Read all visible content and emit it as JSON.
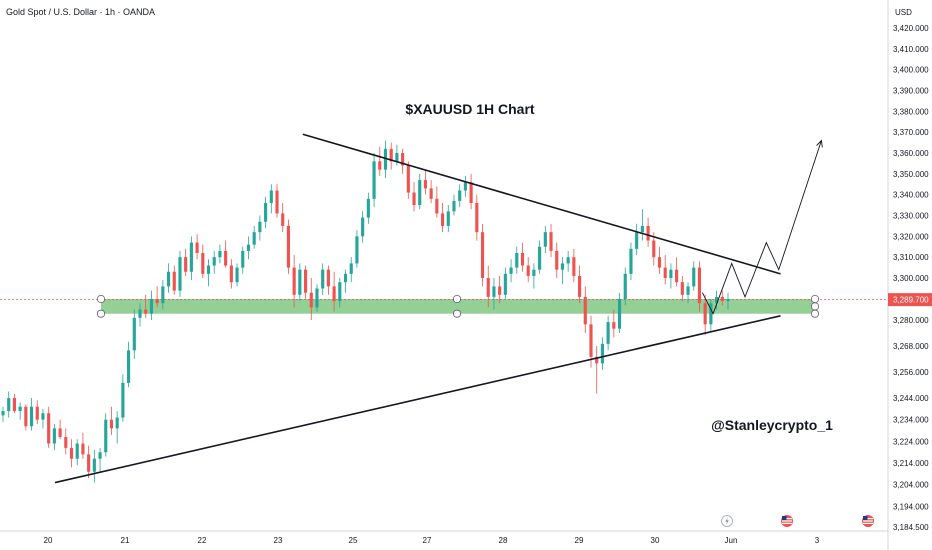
{
  "header": {
    "symbol_title": "Gold Spot / U.S. Dollar · 1h · OANDA",
    "currency": "USD"
  },
  "colors": {
    "bull": "#26a69a",
    "bear": "#ef5350",
    "zone": "#81c784",
    "axis_text": "#131722",
    "price_tag": "#ef5350",
    "line": "#131722"
  },
  "icons": [
    "lightning-icon",
    "us-flag-icon",
    "us-flag-icon"
  ],
  "chart_data": {
    "type": "candlestick",
    "title": "$XAUUSD 1H Chart",
    "watermark": "@Stanleycrypto_1",
    "y_ticks": [
      3420,
      3410,
      3400,
      3390,
      3380,
      3370,
      3360,
      3350,
      3340,
      3330,
      3320,
      3310,
      3300,
      3280,
      3268,
      3256,
      3244,
      3234,
      3224,
      3214,
      3204,
      3194,
      3184.5
    ],
    "y_tick_labels": [
      "3,420.000",
      "3,410.000",
      "3,400.000",
      "3,390.000",
      "3,380.000",
      "3,370.000",
      "3,360.000",
      "3,350.000",
      "3,340.000",
      "3,330.000",
      "3,320.000",
      "3,310.000",
      "3,300.000",
      "3,280.000",
      "3,268.000",
      "3,256.000",
      "3,244.000",
      "3,234.000",
      "3,224.000",
      "3,214.000",
      "3,204.000",
      "3,194.000",
      "3,184.500"
    ],
    "x_ticks": [
      "20",
      "21",
      "22",
      "23",
      "25",
      "27",
      "28",
      "29",
      "30",
      "Jun",
      "3"
    ],
    "current_price": 3289.7,
    "current_price_label": "3,289.700",
    "support_zone": [
      3283,
      3290
    ],
    "candles": [
      [
        3236,
        3240,
        3233,
        3238
      ],
      [
        3238,
        3247,
        3235,
        3244
      ],
      [
        3244,
        3246,
        3237,
        3238
      ],
      [
        3238,
        3242,
        3234,
        3240
      ],
      [
        3240,
        3241,
        3229,
        3231
      ],
      [
        3231,
        3244,
        3229,
        3240
      ],
      [
        3240,
        3243,
        3232,
        3234
      ],
      [
        3234,
        3239,
        3230,
        3237
      ],
      [
        3237,
        3240,
        3221,
        3223
      ],
      [
        3223,
        3232,
        3220,
        3230
      ],
      [
        3230,
        3234,
        3225,
        3226
      ],
      [
        3226,
        3230,
        3218,
        3221
      ],
      [
        3221,
        3225,
        3212,
        3216
      ],
      [
        3216,
        3225,
        3213,
        3223
      ],
      [
        3223,
        3228,
        3216,
        3218
      ],
      [
        3218,
        3222,
        3207,
        3210
      ],
      [
        3210,
        3220,
        3205,
        3216
      ],
      [
        3216,
        3221,
        3210,
        3219
      ],
      [
        3219,
        3237,
        3217,
        3234
      ],
      [
        3234,
        3240,
        3227,
        3230
      ],
      [
        3230,
        3238,
        3223,
        3235
      ],
      [
        3235,
        3255,
        3233,
        3251
      ],
      [
        3251,
        3270,
        3249,
        3266
      ],
      [
        3266,
        3285,
        3262,
        3281
      ],
      [
        3281,
        3288,
        3277,
        3285
      ],
      [
        3285,
        3292,
        3281,
        3283
      ],
      [
        3283,
        3294,
        3280,
        3290
      ],
      [
        3290,
        3296,
        3286,
        3288
      ],
      [
        3288,
        3299,
        3285,
        3296
      ],
      [
        3296,
        3307,
        3293,
        3303
      ],
      [
        3303,
        3306,
        3292,
        3294
      ],
      [
        3294,
        3313,
        3291,
        3310
      ],
      [
        3310,
        3314,
        3301,
        3303
      ],
      [
        3303,
        3320,
        3299,
        3317
      ],
      [
        3317,
        3321,
        3309,
        3312
      ],
      [
        3312,
        3316,
        3300,
        3302
      ],
      [
        3302,
        3309,
        3296,
        3306
      ],
      [
        3306,
        3313,
        3302,
        3310
      ],
      [
        3310,
        3316,
        3307,
        3313
      ],
      [
        3313,
        3318,
        3305,
        3306
      ],
      [
        3306,
        3309,
        3295,
        3298
      ],
      [
        3298,
        3307,
        3296,
        3305
      ],
      [
        3305,
        3315,
        3302,
        3313
      ],
      [
        3313,
        3320,
        3309,
        3316
      ],
      [
        3316,
        3325,
        3314,
        3322
      ],
      [
        3322,
        3330,
        3318,
        3327
      ],
      [
        3327,
        3339,
        3324,
        3336
      ],
      [
        3336,
        3345,
        3331,
        3342
      ],
      [
        3342,
        3345,
        3329,
        3331
      ],
      [
        3331,
        3336,
        3322,
        3325
      ],
      [
        3325,
        3328,
        3302,
        3305
      ],
      [
        3305,
        3311,
        3286,
        3292
      ],
      [
        3292,
        3307,
        3289,
        3304
      ],
      [
        3304,
        3306,
        3290,
        3293
      ],
      [
        3293,
        3300,
        3280,
        3286
      ],
      [
        3286,
        3297,
        3284,
        3295
      ],
      [
        3295,
        3307,
        3292,
        3304
      ],
      [
        3304,
        3306,
        3292,
        3296
      ],
      [
        3296,
        3303,
        3284,
        3289
      ],
      [
        3289,
        3300,
        3286,
        3298
      ],
      [
        3298,
        3304,
        3293,
        3302
      ],
      [
        3302,
        3310,
        3298,
        3307
      ],
      [
        3307,
        3323,
        3305,
        3320
      ],
      [
        3320,
        3332,
        3317,
        3329
      ],
      [
        3329,
        3341,
        3326,
        3338
      ],
      [
        3338,
        3360,
        3334,
        3356
      ],
      [
        3356,
        3363,
        3349,
        3352
      ],
      [
        3352,
        3366,
        3348,
        3362
      ],
      [
        3362,
        3365,
        3352,
        3356
      ],
      [
        3356,
        3364,
        3354,
        3360
      ],
      [
        3360,
        3362,
        3350,
        3354
      ],
      [
        3354,
        3356,
        3338,
        3341
      ],
      [
        3341,
        3346,
        3332,
        3335
      ],
      [
        3335,
        3350,
        3333,
        3347
      ],
      [
        3347,
        3352,
        3340,
        3343
      ],
      [
        3343,
        3347,
        3336,
        3338
      ],
      [
        3338,
        3344,
        3329,
        3331
      ],
      [
        3331,
        3336,
        3322,
        3325
      ],
      [
        3325,
        3335,
        3322,
        3332
      ],
      [
        3332,
        3340,
        3330,
        3337
      ],
      [
        3337,
        3345,
        3334,
        3342
      ],
      [
        3342,
        3349,
        3339,
        3346
      ],
      [
        3346,
        3350,
        3333,
        3336
      ],
      [
        3336,
        3340,
        3318,
        3322
      ],
      [
        3322,
        3326,
        3296,
        3300
      ],
      [
        3300,
        3306,
        3286,
        3291
      ],
      [
        3291,
        3300,
        3285,
        3296
      ],
      [
        3296,
        3301,
        3288,
        3292
      ],
      [
        3292,
        3305,
        3290,
        3302
      ],
      [
        3302,
        3309,
        3298,
        3305
      ],
      [
        3305,
        3315,
        3302,
        3312
      ],
      [
        3312,
        3317,
        3303,
        3306
      ],
      [
        3306,
        3310,
        3298,
        3301
      ],
      [
        3301,
        3307,
        3295,
        3304
      ],
      [
        3304,
        3318,
        3302,
        3315
      ],
      [
        3315,
        3325,
        3312,
        3322
      ],
      [
        3322,
        3326,
        3310,
        3313
      ],
      [
        3313,
        3317,
        3300,
        3304
      ],
      [
        3304,
        3310,
        3297,
        3307
      ],
      [
        3307,
        3313,
        3303,
        3310
      ],
      [
        3310,
        3314,
        3298,
        3301
      ],
      [
        3301,
        3306,
        3288,
        3291
      ],
      [
        3291,
        3296,
        3274,
        3278
      ],
      [
        3278,
        3282,
        3258,
        3263
      ],
      [
        3263,
        3268,
        3246,
        3260
      ],
      [
        3260,
        3272,
        3257,
        3269
      ],
      [
        3269,
        3282,
        3266,
        3279
      ],
      [
        3279,
        3285,
        3272,
        3276
      ],
      [
        3276,
        3293,
        3274,
        3290
      ],
      [
        3290,
        3305,
        3287,
        3302
      ],
      [
        3302,
        3317,
        3299,
        3314
      ],
      [
        3314,
        3326,
        3311,
        3322
      ],
      [
        3322,
        3333,
        3318,
        3325
      ],
      [
        3325,
        3329,
        3315,
        3318
      ],
      [
        3318,
        3322,
        3306,
        3310
      ],
      [
        3310,
        3315,
        3302,
        3305
      ],
      [
        3305,
        3311,
        3297,
        3300
      ],
      [
        3300,
        3307,
        3295,
        3304
      ],
      [
        3304,
        3310,
        3296,
        3298
      ],
      [
        3298,
        3301,
        3289,
        3292
      ],
      [
        3292,
        3298,
        3288,
        3296
      ],
      [
        3296,
        3308,
        3294,
        3305
      ],
      [
        3305,
        3308,
        3284,
        3288
      ],
      [
        3288,
        3292,
        3273,
        3278
      ],
      [
        3278,
        3290,
        3275,
        3288
      ],
      [
        3288,
        3294,
        3285,
        3291
      ],
      [
        3291,
        3294,
        3287,
        3289
      ],
      [
        3289,
        3293,
        3285,
        3290
      ]
    ],
    "trendlines": [
      {
        "from": [
          0.341,
          3369
        ],
        "to": [
          0.879,
          3302
        ]
      },
      {
        "from": [
          0.062,
          3205
        ],
        "to": [
          0.879,
          3282
        ]
      }
    ],
    "projection_path": [
      [
        0.791,
        3293
      ],
      [
        0.803,
        3283
      ],
      [
        0.824,
        3307
      ],
      [
        0.839,
        3291
      ],
      [
        0.863,
        3317
      ],
      [
        0.877,
        3304
      ],
      [
        0.925,
        3366
      ]
    ]
  }
}
